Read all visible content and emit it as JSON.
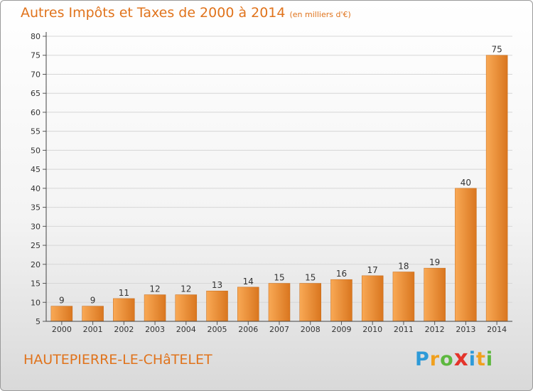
{
  "title": "Autres Impôts et Taxes de 2000 à 2014",
  "unit_label": "(en milliers d'€)",
  "place_name": "HAUTEPIERRE-LE-CHâTELET",
  "logo": {
    "letters": [
      "P",
      "r",
      "o",
      "x",
      "i",
      "t",
      "i"
    ],
    "colors": [
      "#2d9ad8",
      "#f0a01e",
      "#5db83f",
      "#e4342b",
      "#2d9ad8",
      "#f0a01e",
      "#5db83f"
    ]
  },
  "colors": {
    "accent": "#e0731c",
    "bar_light": "#f9a955",
    "bar_dark": "#d9761f"
  },
  "chart_data": {
    "type": "bar",
    "categories": [
      "2000",
      "2001",
      "2002",
      "2003",
      "2004",
      "2005",
      "2006",
      "2007",
      "2008",
      "2009",
      "2010",
      "2011",
      "2012",
      "2013",
      "2014"
    ],
    "values": [
      9,
      9,
      11,
      12,
      12,
      13,
      14,
      15,
      15,
      16,
      17,
      18,
      19,
      40,
      75
    ],
    "title": "Autres Impôts et Taxes de 2000 à 2014",
    "ylim": [
      5,
      80
    ],
    "yticks": [
      5,
      10,
      15,
      20,
      25,
      30,
      35,
      40,
      45,
      50,
      55,
      60,
      65,
      70,
      75,
      80
    ],
    "grid": true,
    "legend": "none"
  }
}
